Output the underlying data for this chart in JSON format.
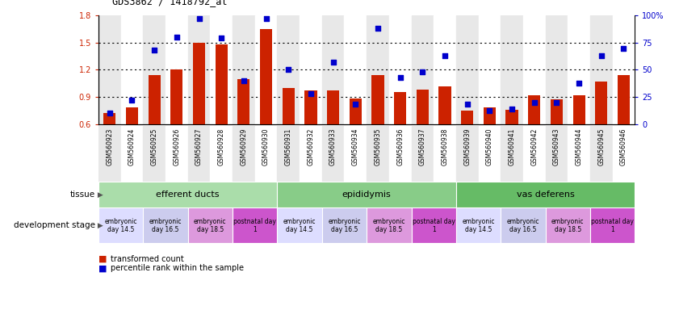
{
  "title": "GDS3862 / 1418792_at",
  "samples": [
    "GSM560923",
    "GSM560924",
    "GSM560925",
    "GSM560926",
    "GSM560927",
    "GSM560928",
    "GSM560929",
    "GSM560930",
    "GSM560931",
    "GSM560932",
    "GSM560933",
    "GSM560934",
    "GSM560935",
    "GSM560936",
    "GSM560937",
    "GSM560938",
    "GSM560939",
    "GSM560940",
    "GSM560941",
    "GSM560942",
    "GSM560943",
    "GSM560944",
    "GSM560945",
    "GSM560946"
  ],
  "bar_values": [
    0.72,
    0.78,
    1.14,
    1.2,
    1.5,
    1.48,
    1.1,
    1.65,
    1.0,
    0.97,
    0.97,
    0.88,
    1.14,
    0.95,
    0.98,
    1.02,
    0.75,
    0.78,
    0.76,
    0.92,
    0.87,
    0.92,
    1.07,
    1.14
  ],
  "scatter_values": [
    10,
    22,
    68,
    80,
    97,
    79,
    40,
    97,
    50,
    28,
    57,
    18,
    88,
    43,
    48,
    63,
    18,
    12,
    14,
    20,
    20,
    38,
    63,
    70
  ],
  "ylim_left": [
    0.6,
    1.8
  ],
  "ylim_right": [
    0,
    100
  ],
  "yticks_left": [
    0.6,
    0.9,
    1.2,
    1.5,
    1.8
  ],
  "yticks_right": [
    0,
    25,
    50,
    75,
    100
  ],
  "ytick_labels_right": [
    "0",
    "25",
    "50",
    "75",
    "100%"
  ],
  "bar_color": "#cc2200",
  "scatter_color": "#0000cc",
  "tissue_groups": [
    {
      "label": "efferent ducts",
      "start": 0,
      "end": 8,
      "color": "#aaddaa"
    },
    {
      "label": "epididymis",
      "start": 8,
      "end": 16,
      "color": "#88cc88"
    },
    {
      "label": "vas deferens",
      "start": 16,
      "end": 24,
      "color": "#66bb66"
    }
  ],
  "dev_stage_groups": [
    {
      "label": "embryonic\nday 14.5",
      "start": 0,
      "end": 2,
      "color": "#ddddff"
    },
    {
      "label": "embryonic\nday 16.5",
      "start": 2,
      "end": 4,
      "color": "#ccccee"
    },
    {
      "label": "embryonic\nday 18.5",
      "start": 4,
      "end": 6,
      "color": "#dd99dd"
    },
    {
      "label": "postnatal day\n1",
      "start": 6,
      "end": 8,
      "color": "#cc55cc"
    },
    {
      "label": "embryonic\nday 14.5",
      "start": 8,
      "end": 10,
      "color": "#ddddff"
    },
    {
      "label": "embryonic\nday 16.5",
      "start": 10,
      "end": 12,
      "color": "#ccccee"
    },
    {
      "label": "embryonic\nday 18.5",
      "start": 12,
      "end": 14,
      "color": "#dd99dd"
    },
    {
      "label": "postnatal day\n1",
      "start": 14,
      "end": 16,
      "color": "#cc55cc"
    },
    {
      "label": "embryonic\nday 14.5",
      "start": 16,
      "end": 18,
      "color": "#ddddff"
    },
    {
      "label": "embryonic\nday 16.5",
      "start": 18,
      "end": 20,
      "color": "#ccccee"
    },
    {
      "label": "embryonic\nday 18.5",
      "start": 20,
      "end": 22,
      "color": "#dd99dd"
    },
    {
      "label": "postnatal day\n1",
      "start": 22,
      "end": 24,
      "color": "#cc55cc"
    }
  ],
  "legend_bar_label": "transformed count",
  "legend_scatter_label": "percentile rank within the sample",
  "tissue_label": "tissue",
  "devstage_label": "development stage",
  "background_color": "#ffffff",
  "tick_bg_even": "#e8e8e8",
  "tick_bg_odd": "#ffffff"
}
